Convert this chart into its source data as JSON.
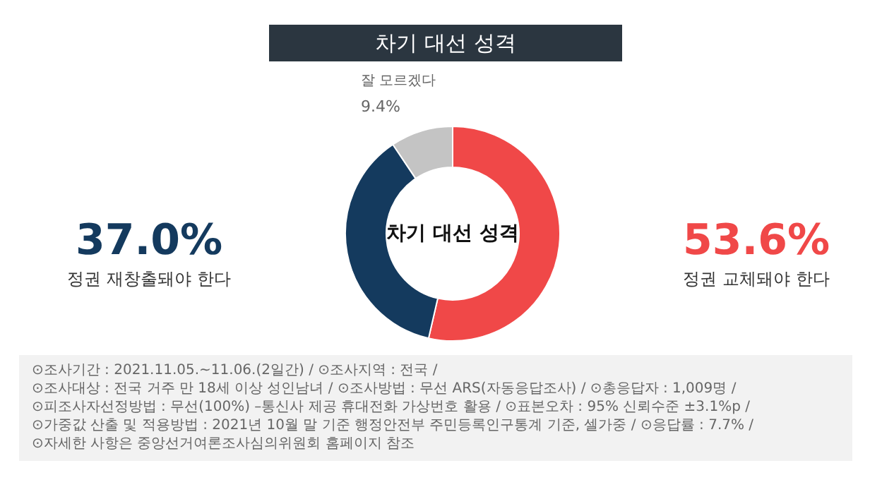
{
  "chart_data": {
    "type": "donut",
    "title": "차기 대선 성격",
    "categories": [
      "정권 교체돼야 한다",
      "정권 재창출돼야 한다",
      "잘 모르겠다"
    ],
    "values": [
      53.6,
      37.0,
      9.4
    ],
    "colors": [
      "#f04848",
      "#143a5e",
      "#c4c4c4"
    ],
    "value_labels": [
      "53.6%",
      "37.0%",
      "9.4%"
    ],
    "annotations": [
      "차기 대선 성격",
      "⊙조사기간 : 2021.11.05.~11.06.(2일간) / ⊙조사지역 : 전국 /",
      "⊙조사대상 : 전국 거주 만 18세 이상 성인남녀 / ⊙조사방법 : 무선 ARS(자동응답조사) / ⊙총응답자 : 1,009명 /",
      "⊙피조사자선정방법 : 무선(100%) –통신사 제공 휴대전화 가상번호 활용 / ⊙표본오차 : 95% 신뢰수준 ±3.1%p /",
      "⊙가중값 산출 및 적용방법 : 2021년 10월 말 기준 행정안전부 주민등록인구통계 기준, 셀가중 / ⊙응답률 : 7.7% /",
      "⊙자세한 사항은 중앙선거여론조사심의위원회 홈페이지 참조"
    ]
  }
}
